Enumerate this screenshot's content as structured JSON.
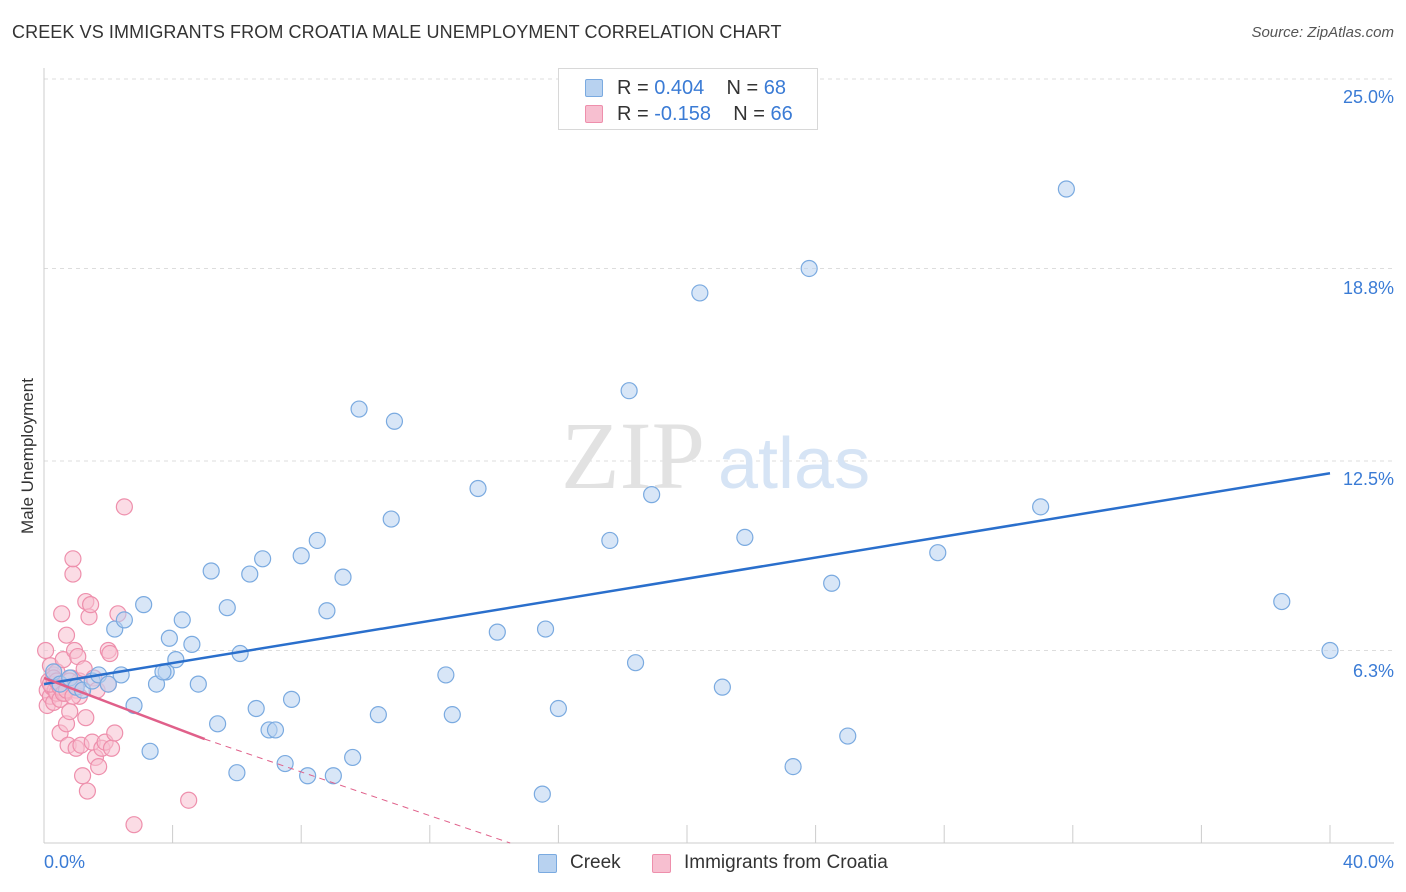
{
  "title": "CREEK VS IMMIGRANTS FROM CROATIA MALE UNEMPLOYMENT CORRELATION CHART",
  "source": "Source: ZipAtlas.com",
  "watermark": {
    "zip": "ZIP",
    "atlas": "atlas"
  },
  "legend_top": [
    {
      "r_label": "R = ",
      "r_value": "0.404",
      "n_label": "N = ",
      "n_value": "68"
    },
    {
      "r_label": "R = ",
      "r_value": "-0.158",
      "n_label": "N = ",
      "n_value": "66"
    }
  ],
  "colors": {
    "creek_fill": "#b8d2f0",
    "creek_stroke": "#7aaae0",
    "creek_line": "#2a6fcc",
    "croatia_fill": "#f7bfd0",
    "croatia_stroke": "#ee8fac",
    "croatia_line": "#e0608a",
    "tick_text": "#3a7bd5",
    "grid": "#dddddd"
  },
  "chart_data": {
    "type": "scatter",
    "title": "CREEK VS IMMIGRANTS FROM CROATIA MALE UNEMPLOYMENT CORRELATION CHART",
    "xlabel": "",
    "ylabel": "Male Unemployment",
    "xlim": [
      0,
      40
    ],
    "ylim": [
      0,
      25
    ],
    "x_tick_labels": [
      "0.0%",
      "40.0%"
    ],
    "y_ticks": [
      6.3,
      12.5,
      18.8,
      25.0
    ],
    "y_tick_labels": [
      "6.3%",
      "12.5%",
      "18.8%",
      "25.0%"
    ],
    "grid": true,
    "legend": "bottom",
    "series": [
      {
        "name": "Creek",
        "r": 0.404,
        "n": 68,
        "trend": {
          "x": [
            0,
            40
          ],
          "y": [
            5.2,
            12.1
          ]
        },
        "points": [
          [
            0.3,
            5.6
          ],
          [
            0.5,
            5.2
          ],
          [
            0.8,
            5.4
          ],
          [
            1.0,
            5.1
          ],
          [
            1.2,
            5.0
          ],
          [
            1.5,
            5.3
          ],
          [
            1.7,
            5.5
          ],
          [
            2.0,
            5.2
          ],
          [
            2.2,
            7.0
          ],
          [
            2.4,
            5.5
          ],
          [
            2.5,
            7.3
          ],
          [
            2.8,
            4.5
          ],
          [
            3.1,
            7.8
          ],
          [
            3.3,
            3.0
          ],
          [
            3.5,
            5.2
          ],
          [
            3.8,
            5.6
          ],
          [
            3.9,
            6.7
          ],
          [
            4.1,
            6.0
          ],
          [
            4.3,
            7.3
          ],
          [
            4.6,
            6.5
          ],
          [
            4.8,
            5.2
          ],
          [
            5.2,
            8.9
          ],
          [
            5.4,
            3.9
          ],
          [
            5.7,
            7.7
          ],
          [
            6.0,
            2.3
          ],
          [
            6.1,
            6.2
          ],
          [
            6.4,
            8.8
          ],
          [
            6.6,
            4.4
          ],
          [
            6.8,
            9.3
          ],
          [
            7.0,
            3.7
          ],
          [
            7.2,
            3.7
          ],
          [
            7.5,
            2.6
          ],
          [
            7.7,
            4.7
          ],
          [
            8.0,
            9.4
          ],
          [
            8.2,
            2.2
          ],
          [
            8.5,
            9.9
          ],
          [
            8.8,
            7.6
          ],
          [
            9.0,
            2.2
          ],
          [
            9.3,
            8.7
          ],
          [
            9.6,
            2.8
          ],
          [
            9.8,
            14.2
          ],
          [
            10.4,
            4.2
          ],
          [
            10.8,
            10.6
          ],
          [
            10.9,
            13.8
          ],
          [
            12.5,
            5.5
          ],
          [
            12.7,
            4.2
          ],
          [
            13.5,
            11.6
          ],
          [
            14.1,
            6.9
          ],
          [
            15.5,
            1.6
          ],
          [
            15.6,
            7.0
          ],
          [
            16.0,
            4.4
          ],
          [
            17.6,
            9.9
          ],
          [
            18.2,
            14.8
          ],
          [
            18.4,
            5.9
          ],
          [
            18.9,
            11.4
          ],
          [
            20.4,
            18.0
          ],
          [
            21.1,
            5.1
          ],
          [
            21.8,
            10.0
          ],
          [
            23.3,
            2.5
          ],
          [
            23.8,
            18.8
          ],
          [
            24.5,
            8.5
          ],
          [
            25.0,
            3.5
          ],
          [
            27.8,
            9.5
          ],
          [
            31.0,
            11.0
          ],
          [
            31.8,
            21.4
          ],
          [
            38.5,
            7.9
          ],
          [
            40.0,
            6.3
          ],
          [
            3.7,
            5.6
          ]
        ]
      },
      {
        "name": "Immigrants from Croatia",
        "r": -0.158,
        "n": 66,
        "trend": {
          "x": [
            0,
            5
          ],
          "y": [
            5.4,
            3.4
          ]
        },
        "trend_extension": {
          "x": [
            5,
            14.5
          ],
          "y": [
            3.4,
            0
          ]
        },
        "points": [
          [
            0.05,
            6.3
          ],
          [
            0.1,
            5.0
          ],
          [
            0.1,
            4.5
          ],
          [
            0.15,
            5.3
          ],
          [
            0.2,
            4.8
          ],
          [
            0.2,
            5.8
          ],
          [
            0.25,
            5.1
          ],
          [
            0.3,
            4.6
          ],
          [
            0.3,
            5.5
          ],
          [
            0.35,
            5.0
          ],
          [
            0.4,
            4.9
          ],
          [
            0.4,
            5.6
          ],
          [
            0.45,
            5.2
          ],
          [
            0.5,
            4.7
          ],
          [
            0.5,
            3.6
          ],
          [
            0.55,
            7.5
          ],
          [
            0.6,
            5.0
          ],
          [
            0.6,
            6.0
          ],
          [
            0.65,
            4.9
          ],
          [
            0.7,
            3.9
          ],
          [
            0.7,
            6.8
          ],
          [
            0.75,
            3.2
          ],
          [
            0.8,
            5.1
          ],
          [
            0.8,
            4.3
          ],
          [
            0.85,
            5.4
          ],
          [
            0.9,
            8.8
          ],
          [
            0.9,
            9.3
          ],
          [
            0.95,
            6.3
          ],
          [
            1.0,
            3.1
          ],
          [
            1.0,
            5.0
          ],
          [
            1.05,
            6.1
          ],
          [
            1.1,
            5.3
          ],
          [
            1.1,
            4.8
          ],
          [
            1.15,
            3.2
          ],
          [
            1.2,
            2.2
          ],
          [
            1.25,
            5.7
          ],
          [
            1.3,
            4.1
          ],
          [
            1.3,
            7.9
          ],
          [
            1.35,
            1.7
          ],
          [
            1.4,
            7.4
          ],
          [
            1.45,
            7.8
          ],
          [
            1.5,
            3.3
          ],
          [
            1.55,
            5.4
          ],
          [
            1.6,
            2.8
          ],
          [
            1.65,
            5.0
          ],
          [
            1.7,
            2.5
          ],
          [
            1.8,
            3.1
          ],
          [
            1.9,
            3.3
          ],
          [
            2.0,
            5.2
          ],
          [
            2.0,
            6.3
          ],
          [
            2.05,
            6.2
          ],
          [
            2.1,
            3.1
          ],
          [
            2.2,
            3.6
          ],
          [
            2.3,
            7.5
          ],
          [
            2.5,
            11.0
          ],
          [
            2.8,
            0.6
          ],
          [
            4.5,
            1.4
          ],
          [
            0.2,
            5.2
          ],
          [
            0.3,
            5.4
          ],
          [
            0.4,
            5.3
          ],
          [
            0.5,
            5.1
          ],
          [
            0.6,
            4.9
          ],
          [
            0.7,
            5.0
          ],
          [
            0.8,
            5.3
          ],
          [
            0.9,
            4.8
          ],
          [
            1.0,
            5.1
          ]
        ]
      }
    ]
  },
  "legend_bottom": [
    "Creek",
    "Immigrants from Croatia"
  ]
}
